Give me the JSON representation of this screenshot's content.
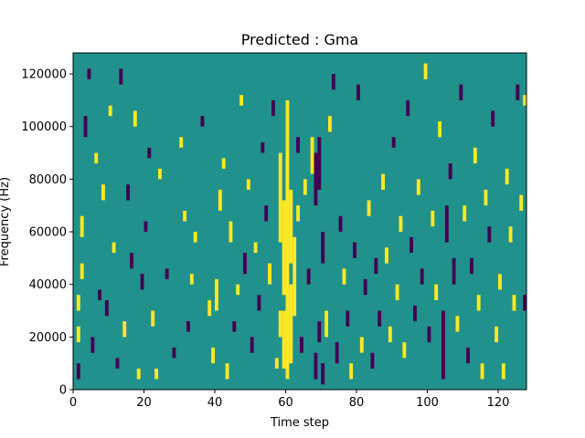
{
  "chart_data": {
    "type": "heatmap",
    "title": "Predicted : Gma",
    "xlabel": "Time step",
    "ylabel": "Frequency (Hz)",
    "xlim": [
      0,
      128
    ],
    "ylim": [
      0,
      128000
    ],
    "x_ticks": [
      0,
      20,
      40,
      60,
      80,
      100,
      120
    ],
    "x_tick_labels": [
      "0",
      "20",
      "40",
      "60",
      "80",
      "100",
      "120"
    ],
    "y_ticks": [
      0,
      20000,
      40000,
      60000,
      80000,
      100000,
      120000
    ],
    "y_tick_labels": [
      "0",
      "20000",
      "40000",
      "60000",
      "80000",
      "100000",
      "120000"
    ],
    "n_time_steps": 128,
    "n_freq_bins": 64,
    "colormap": "viridis",
    "levels": [
      -1,
      0,
      1
    ],
    "colors": {
      "low": "#440154",
      "mid": "#21918c",
      "high": "#fde725"
    },
    "background_level": 0,
    "grid": false,
    "legend": "none",
    "cells": [
      {
        "t": 1,
        "f0": 4000,
        "f1": 10000,
        "level": -1
      },
      {
        "t": 1,
        "f0": 18000,
        "f1": 24000,
        "level": 1
      },
      {
        "t": 1,
        "f0": 30000,
        "f1": 36000,
        "level": 1
      },
      {
        "t": 2,
        "f0": 58000,
        "f1": 66000,
        "level": 1
      },
      {
        "t": 2,
        "f0": 42000,
        "f1": 48000,
        "level": 1
      },
      {
        "t": 3,
        "f0": 96000,
        "f1": 104000,
        "level": -1
      },
      {
        "t": 4,
        "f0": 118000,
        "f1": 122000,
        "level": -1
      },
      {
        "t": 5,
        "f0": 14000,
        "f1": 20000,
        "level": -1
      },
      {
        "t": 6,
        "f0": 86000,
        "f1": 90000,
        "level": 1
      },
      {
        "t": 7,
        "f0": 34000,
        "f1": 38000,
        "level": -1
      },
      {
        "t": 8,
        "f0": 72000,
        "f1": 78000,
        "level": 1
      },
      {
        "t": 9,
        "f0": 28000,
        "f1": 34000,
        "level": -1
      },
      {
        "t": 10,
        "f0": 104000,
        "f1": 108000,
        "level": 1
      },
      {
        "t": 11,
        "f0": 52000,
        "f1": 56000,
        "level": 1
      },
      {
        "t": 12,
        "f0": 8000,
        "f1": 12000,
        "level": -1
      },
      {
        "t": 13,
        "f0": 116000,
        "f1": 122000,
        "level": -1
      },
      {
        "t": 14,
        "f0": 20000,
        "f1": 26000,
        "level": 1
      },
      {
        "t": 15,
        "f0": 72000,
        "f1": 78000,
        "level": -1
      },
      {
        "t": 16,
        "f0": 46000,
        "f1": 52000,
        "level": -1
      },
      {
        "t": 17,
        "f0": 100000,
        "f1": 106000,
        "level": 1
      },
      {
        "t": 18,
        "f0": 4000,
        "f1": 8000,
        "level": 1
      },
      {
        "t": 19,
        "f0": 38000,
        "f1": 44000,
        "level": -1
      },
      {
        "t": 20,
        "f0": 60000,
        "f1": 64000,
        "level": -1
      },
      {
        "t": 21,
        "f0": 88000,
        "f1": 92000,
        "level": -1
      },
      {
        "t": 22,
        "f0": 24000,
        "f1": 30000,
        "level": 1
      },
      {
        "t": 23,
        "f0": 4000,
        "f1": 8000,
        "level": 1
      },
      {
        "t": 24,
        "f0": 80000,
        "f1": 84000,
        "level": 1
      },
      {
        "t": 26,
        "f0": 42000,
        "f1": 46000,
        "level": -1
      },
      {
        "t": 28,
        "f0": 12000,
        "f1": 16000,
        "level": -1
      },
      {
        "t": 30,
        "f0": 92000,
        "f1": 96000,
        "level": 1
      },
      {
        "t": 31,
        "f0": 64000,
        "f1": 68000,
        "level": 1
      },
      {
        "t": 32,
        "f0": 22000,
        "f1": 26000,
        "level": -1
      },
      {
        "t": 33,
        "f0": 40000,
        "f1": 44000,
        "level": 1
      },
      {
        "t": 34,
        "f0": 56000,
        "f1": 60000,
        "level": 1
      },
      {
        "t": 36,
        "f0": 100000,
        "f1": 104000,
        "level": -1
      },
      {
        "t": 38,
        "f0": 28000,
        "f1": 34000,
        "level": 1
      },
      {
        "t": 39,
        "f0": 10000,
        "f1": 16000,
        "level": 1
      },
      {
        "t": 40,
        "f0": 30000,
        "f1": 42000,
        "level": 1
      },
      {
        "t": 41,
        "f0": 68000,
        "f1": 76000,
        "level": 1
      },
      {
        "t": 42,
        "f0": 84000,
        "f1": 88000,
        "level": 1
      },
      {
        "t": 43,
        "f0": 4000,
        "f1": 10000,
        "level": 1
      },
      {
        "t": 44,
        "f0": 56000,
        "f1": 64000,
        "level": 1
      },
      {
        "t": 45,
        "f0": 22000,
        "f1": 26000,
        "level": -1
      },
      {
        "t": 46,
        "f0": 36000,
        "f1": 40000,
        "level": 1
      },
      {
        "t": 47,
        "f0": 108000,
        "f1": 112000,
        "level": 1
      },
      {
        "t": 48,
        "f0": 44000,
        "f1": 52000,
        "level": -1
      },
      {
        "t": 49,
        "f0": 76000,
        "f1": 80000,
        "level": 1
      },
      {
        "t": 50,
        "f0": 14000,
        "f1": 20000,
        "level": -1
      },
      {
        "t": 51,
        "f0": 52000,
        "f1": 56000,
        "level": 1
      },
      {
        "t": 52,
        "f0": 30000,
        "f1": 36000,
        "level": -1
      },
      {
        "t": 53,
        "f0": 90000,
        "f1": 94000,
        "level": -1
      },
      {
        "t": 54,
        "f0": 64000,
        "f1": 70000,
        "level": -1
      },
      {
        "t": 55,
        "f0": 40000,
        "f1": 48000,
        "level": 1
      },
      {
        "t": 56,
        "f0": 104000,
        "f1": 110000,
        "level": -1
      },
      {
        "t": 57,
        "f0": 8000,
        "f1": 12000,
        "level": 1
      },
      {
        "t": 58,
        "f0": 20000,
        "f1": 30000,
        "level": 1
      },
      {
        "t": 58,
        "f0": 56000,
        "f1": 90000,
        "level": 1
      },
      {
        "t": 59,
        "f0": 8000,
        "f1": 30000,
        "level": 1
      },
      {
        "t": 59,
        "f0": 36000,
        "f1": 72000,
        "level": 1
      },
      {
        "t": 60,
        "f0": 4000,
        "f1": 110000,
        "level": 1
      },
      {
        "t": 61,
        "f0": 10000,
        "f1": 40000,
        "level": 1
      },
      {
        "t": 61,
        "f0": 48000,
        "f1": 76000,
        "level": 1
      },
      {
        "t": 62,
        "f0": 28000,
        "f1": 58000,
        "level": 1
      },
      {
        "t": 63,
        "f0": 64000,
        "f1": 70000,
        "level": 1
      },
      {
        "t": 63,
        "f0": 90000,
        "f1": 96000,
        "level": -1
      },
      {
        "t": 64,
        "f0": 14000,
        "f1": 20000,
        "level": -1
      },
      {
        "t": 65,
        "f0": 74000,
        "f1": 80000,
        "level": 1
      },
      {
        "t": 66,
        "f0": 40000,
        "f1": 46000,
        "level": -1
      },
      {
        "t": 67,
        "f0": 82000,
        "f1": 96000,
        "level": 1
      },
      {
        "t": 68,
        "f0": 4000,
        "f1": 14000,
        "level": -1
      },
      {
        "t": 68,
        "f0": 70000,
        "f1": 90000,
        "level": -1
      },
      {
        "t": 69,
        "f0": 18000,
        "f1": 26000,
        "level": -1
      },
      {
        "t": 69,
        "f0": 76000,
        "f1": 96000,
        "level": -1
      },
      {
        "t": 70,
        "f0": 2000,
        "f1": 10000,
        "level": -1
      },
      {
        "t": 70,
        "f0": 48000,
        "f1": 60000,
        "level": -1
      },
      {
        "t": 71,
        "f0": 20000,
        "f1": 30000,
        "level": 1
      },
      {
        "t": 72,
        "f0": 98000,
        "f1": 104000,
        "level": 1
      },
      {
        "t": 73,
        "f0": 114000,
        "f1": 120000,
        "level": -1
      },
      {
        "t": 74,
        "f0": 10000,
        "f1": 18000,
        "level": -1
      },
      {
        "t": 75,
        "f0": 60000,
        "f1": 66000,
        "level": -1
      },
      {
        "t": 76,
        "f0": 40000,
        "f1": 46000,
        "level": 1
      },
      {
        "t": 77,
        "f0": 24000,
        "f1": 30000,
        "level": -1
      },
      {
        "t": 78,
        "f0": 4000,
        "f1": 10000,
        "level": 1
      },
      {
        "t": 79,
        "f0": 50000,
        "f1": 56000,
        "level": -1
      },
      {
        "t": 80,
        "f0": 110000,
        "f1": 116000,
        "level": -1
      },
      {
        "t": 81,
        "f0": 14000,
        "f1": 20000,
        "level": 1
      },
      {
        "t": 82,
        "f0": 36000,
        "f1": 42000,
        "level": -1
      },
      {
        "t": 83,
        "f0": 66000,
        "f1": 72000,
        "level": 1
      },
      {
        "t": 84,
        "f0": 8000,
        "f1": 14000,
        "level": -1
      },
      {
        "t": 85,
        "f0": 44000,
        "f1": 50000,
        "level": -1
      },
      {
        "t": 86,
        "f0": 24000,
        "f1": 30000,
        "level": -1
      },
      {
        "t": 87,
        "f0": 76000,
        "f1": 82000,
        "level": 1
      },
      {
        "t": 88,
        "f0": 48000,
        "f1": 54000,
        "level": 1
      },
      {
        "t": 89,
        "f0": 18000,
        "f1": 24000,
        "level": 1
      },
      {
        "t": 90,
        "f0": 92000,
        "f1": 96000,
        "level": -1
      },
      {
        "t": 91,
        "f0": 34000,
        "f1": 40000,
        "level": 1
      },
      {
        "t": 92,
        "f0": 60000,
        "f1": 66000,
        "level": 1
      },
      {
        "t": 93,
        "f0": 12000,
        "f1": 18000,
        "level": 1
      },
      {
        "t": 94,
        "f0": 104000,
        "f1": 110000,
        "level": -1
      },
      {
        "t": 95,
        "f0": 52000,
        "f1": 58000,
        "level": -1
      },
      {
        "t": 96,
        "f0": 26000,
        "f1": 32000,
        "level": -1
      },
      {
        "t": 97,
        "f0": 74000,
        "f1": 80000,
        "level": 1
      },
      {
        "t": 98,
        "f0": 40000,
        "f1": 46000,
        "level": -1
      },
      {
        "t": 99,
        "f0": 118000,
        "f1": 124000,
        "level": 1
      },
      {
        "t": 100,
        "f0": 18000,
        "f1": 24000,
        "level": -1
      },
      {
        "t": 101,
        "f0": 62000,
        "f1": 68000,
        "level": 1
      },
      {
        "t": 102,
        "f0": 34000,
        "f1": 40000,
        "level": 1
      },
      {
        "t": 103,
        "f0": 96000,
        "f1": 102000,
        "level": 1
      },
      {
        "t": 104,
        "f0": 4000,
        "f1": 30000,
        "level": -1
      },
      {
        "t": 105,
        "f0": 56000,
        "f1": 70000,
        "level": -1
      },
      {
        "t": 106,
        "f0": 80000,
        "f1": 86000,
        "level": -1
      },
      {
        "t": 107,
        "f0": 40000,
        "f1": 50000,
        "level": -1
      },
      {
        "t": 108,
        "f0": 22000,
        "f1": 28000,
        "level": 1
      },
      {
        "t": 109,
        "f0": 110000,
        "f1": 116000,
        "level": -1
      },
      {
        "t": 110,
        "f0": 64000,
        "f1": 70000,
        "level": 1
      },
      {
        "t": 111,
        "f0": 10000,
        "f1": 16000,
        "level": -1
      },
      {
        "t": 112,
        "f0": 44000,
        "f1": 50000,
        "level": -1
      },
      {
        "t": 113,
        "f0": 86000,
        "f1": 92000,
        "level": 1
      },
      {
        "t": 114,
        "f0": 30000,
        "f1": 36000,
        "level": 1
      },
      {
        "t": 115,
        "f0": 4000,
        "f1": 10000,
        "level": 1
      },
      {
        "t": 116,
        "f0": 70000,
        "f1": 76000,
        "level": 1
      },
      {
        "t": 117,
        "f0": 56000,
        "f1": 62000,
        "level": -1
      },
      {
        "t": 118,
        "f0": 100000,
        "f1": 106000,
        "level": -1
      },
      {
        "t": 119,
        "f0": 18000,
        "f1": 24000,
        "level": 1
      },
      {
        "t": 120,
        "f0": 38000,
        "f1": 44000,
        "level": 1
      },
      {
        "t": 121,
        "f0": 4000,
        "f1": 10000,
        "level": 1
      },
      {
        "t": 122,
        "f0": 78000,
        "f1": 84000,
        "level": 1
      },
      {
        "t": 123,
        "f0": 56000,
        "f1": 62000,
        "level": 1
      },
      {
        "t": 124,
        "f0": 30000,
        "f1": 36000,
        "level": 1
      },
      {
        "t": 125,
        "f0": 110000,
        "f1": 116000,
        "level": -1
      },
      {
        "t": 126,
        "f0": 68000,
        "f1": 74000,
        "level": 1
      },
      {
        "t": 127,
        "f0": 30000,
        "f1": 36000,
        "level": -1
      },
      {
        "t": 127,
        "f0": 108000,
        "f1": 112000,
        "level": 1
      }
    ]
  }
}
